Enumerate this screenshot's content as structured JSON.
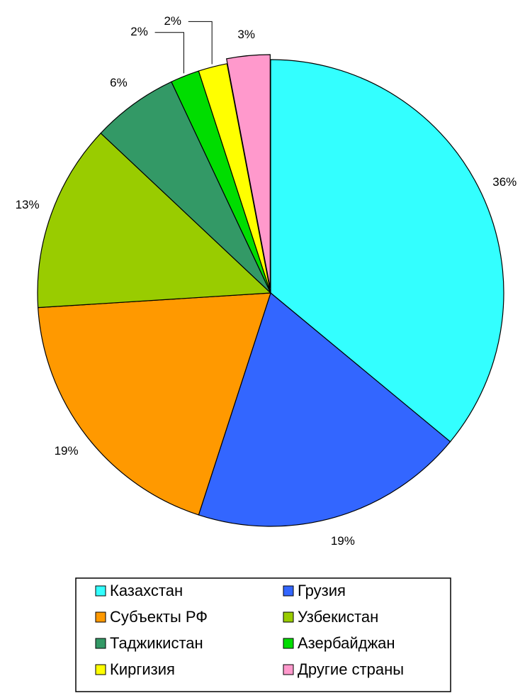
{
  "chart_data": {
    "type": "pie",
    "categories": [
      "Казахстан",
      "Грузия",
      "Субъекты РФ",
      "Узбекистан",
      "Таджикистан",
      "Азербайджан",
      "Киргизия",
      "Другие страны"
    ],
    "values": [
      36,
      19,
      19,
      13,
      6,
      2,
      2,
      3
    ],
    "value_labels": [
      "36%",
      "19%",
      "19%",
      "13%",
      "6%",
      "2%",
      "2%",
      "3%"
    ],
    "colors": [
      "#33ffff",
      "#3366ff",
      "#ff9900",
      "#99cc00",
      "#339966",
      "#00dd00",
      "#ffff00",
      "#ff99cc"
    ],
    "start_angle": 0,
    "direction": "clockwise",
    "legend": "bottom"
  }
}
